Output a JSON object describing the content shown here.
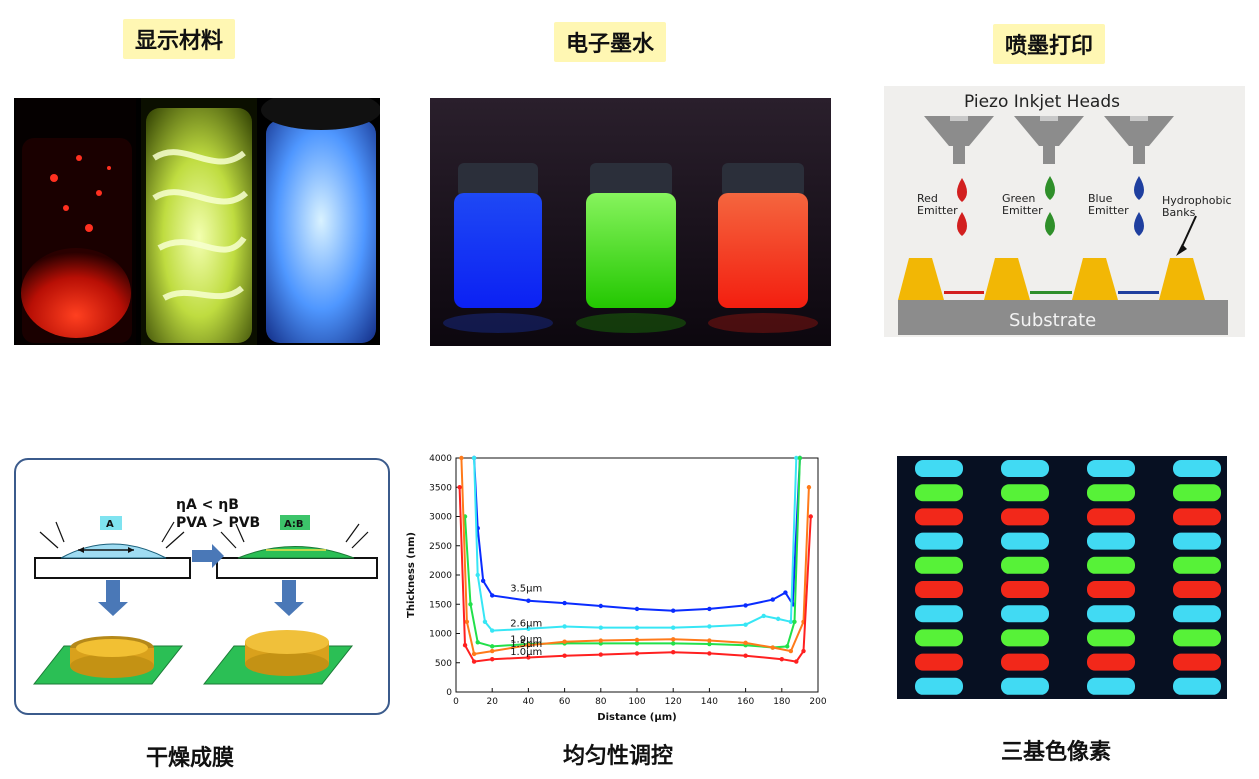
{
  "labels": {
    "display_materials": "显示材料",
    "electronic_ink": "电子墨水",
    "inkjet_printing": "喷墨打印",
    "drying_film": "干燥成膜",
    "uniformity_control": "均匀性调控",
    "tricolor_pixels": "三基色像素"
  },
  "inkjet": {
    "title": "Piezo Inkjet Heads",
    "red": "Red\nEmitter",
    "green": "Green\nEmitter",
    "blue": "Blue\nEmitter",
    "banks": "Hydrophobic\nBanks",
    "substrate": "Substrate"
  },
  "drying": {
    "formula_1": "ηA < ηB",
    "formula_2": "PVA > PVB",
    "left_label": "A",
    "right_label": "A:B"
  },
  "colors": {
    "red": "#ff2a1a",
    "green": "#5cff3a",
    "blue": "#2a6bff",
    "cyan": "#45e6ff",
    "gold": "#f2b705",
    "substrate_green": "#2bb54b"
  },
  "chart_data": {
    "type": "line",
    "xlabel": "Distance (μm)",
    "ylabel": "Thickness (nm)",
    "xlim": [
      0,
      200
    ],
    "ylim": [
      0,
      4000
    ],
    "x_ticks": [
      0,
      20,
      40,
      60,
      80,
      100,
      120,
      140,
      160,
      180,
      200
    ],
    "y_ticks": [
      0,
      500,
      1000,
      1500,
      2000,
      2500,
      3000,
      3500,
      4000
    ],
    "series": [
      {
        "name": "3.5μm",
        "color": "#0a2cff",
        "x": [
          10,
          12,
          15,
          20,
          40,
          60,
          80,
          100,
          120,
          140,
          160,
          175,
          182,
          186,
          190
        ],
        "y": [
          4000,
          2800,
          1900,
          1650,
          1560,
          1520,
          1470,
          1420,
          1390,
          1420,
          1480,
          1580,
          1700,
          1500,
          4000
        ]
      },
      {
        "name": "2.6μm",
        "color": "#37e6f5",
        "x": [
          10,
          12,
          16,
          20,
          40,
          60,
          80,
          100,
          120,
          140,
          160,
          170,
          178,
          185,
          188
        ],
        "y": [
          4000,
          2000,
          1200,
          1050,
          1080,
          1120,
          1100,
          1100,
          1100,
          1120,
          1150,
          1300,
          1250,
          1200,
          4000
        ]
      },
      {
        "name": "1.9μm",
        "color": "#22e04a",
        "x": [
          5,
          8,
          12,
          20,
          40,
          60,
          80,
          100,
          120,
          140,
          160,
          175,
          183,
          187,
          190
        ],
        "y": [
          3000,
          1500,
          850,
          780,
          820,
          830,
          830,
          830,
          830,
          820,
          800,
          760,
          780,
          1200,
          4000
        ]
      },
      {
        "name": "1.5μm",
        "color": "#ff7a1a",
        "x": [
          3,
          6,
          10,
          20,
          40,
          60,
          80,
          100,
          120,
          140,
          160,
          175,
          185,
          192,
          195
        ],
        "y": [
          4000,
          1200,
          650,
          700,
          800,
          860,
          880,
          890,
          900,
          880,
          840,
          760,
          700,
          1200,
          3500
        ]
      },
      {
        "name": "1.0μm",
        "color": "#ff2020",
        "x": [
          2,
          5,
          10,
          20,
          40,
          60,
          80,
          100,
          120,
          140,
          160,
          180,
          188,
          192,
          196
        ],
        "y": [
          3500,
          800,
          520,
          560,
          590,
          620,
          640,
          660,
          680,
          660,
          620,
          560,
          520,
          700,
          3000
        ]
      }
    ]
  }
}
